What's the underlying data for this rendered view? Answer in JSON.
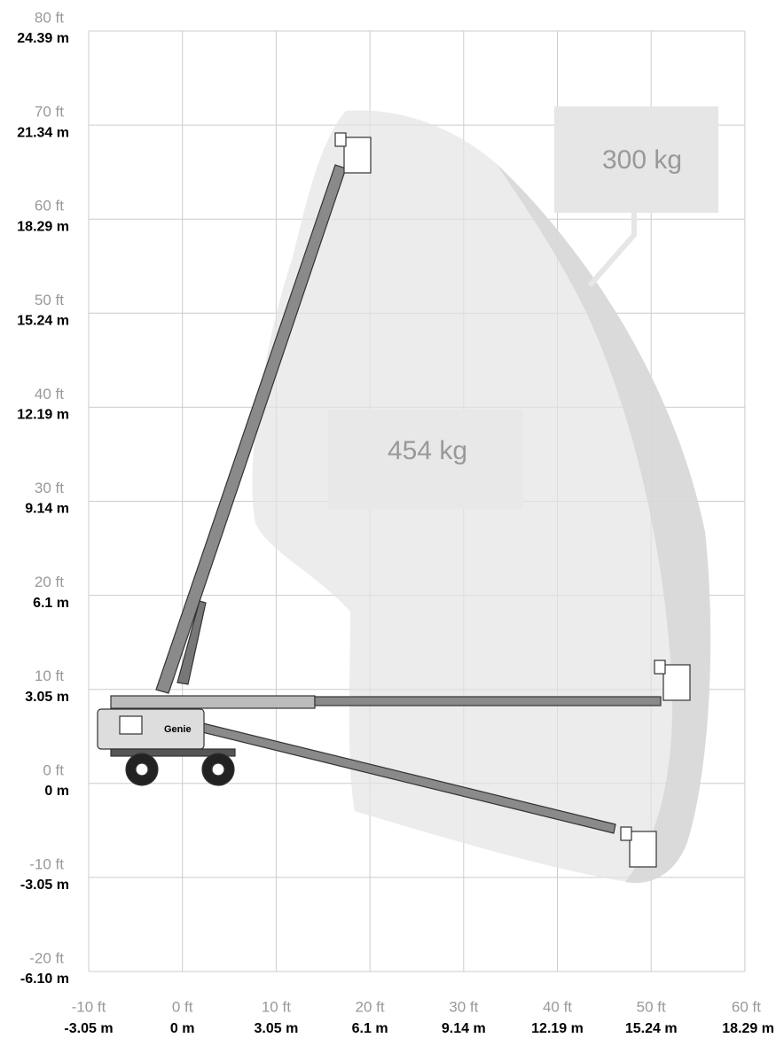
{
  "y_axis": [
    {
      "ft": "80 ft",
      "m": "24.39 m"
    },
    {
      "ft": "70 ft",
      "m": "21.34 m"
    },
    {
      "ft": "60 ft",
      "m": "18.29 m"
    },
    {
      "ft": "50 ft",
      "m": "15.24 m"
    },
    {
      "ft": "40 ft",
      "m": "12.19 m"
    },
    {
      "ft": "30 ft",
      "m": "9.14 m"
    },
    {
      "ft": "20 ft",
      "m": "6.1 m"
    },
    {
      "ft": "10 ft",
      "m": "3.05 m"
    },
    {
      "ft": "0 ft",
      "m": "0 m"
    },
    {
      "ft": "-10 ft",
      "m": "-3.05 m"
    },
    {
      "ft": "-20 ft",
      "m": "-6.10 m"
    }
  ],
  "x_axis": [
    {
      "ft": "-10 ft",
      "m": "-3.05 m"
    },
    {
      "ft": "0 ft",
      "m": "0 m"
    },
    {
      "ft": "10 ft",
      "m": "3.05 m"
    },
    {
      "ft": "20 ft",
      "m": "6.1 m"
    },
    {
      "ft": "30 ft",
      "m": "9.14 m"
    },
    {
      "ft": "40 ft",
      "m": "12.19 m"
    },
    {
      "ft": "50 ft",
      "m": "15.24 m"
    },
    {
      "ft": "60 ft",
      "m": "18.29 m"
    }
  ],
  "zones": [
    {
      "label": "454 kg"
    },
    {
      "label": "300 kg"
    }
  ],
  "brand": "Genie"
}
